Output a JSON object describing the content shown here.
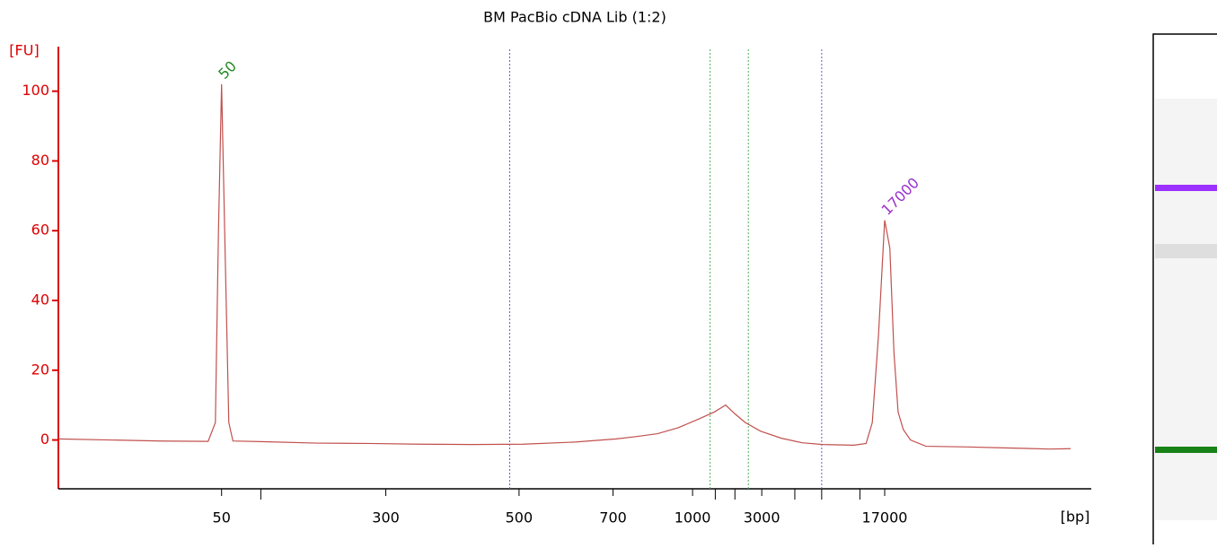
{
  "chart_data": {
    "type": "line",
    "title": "BM PacBio cDNA Lib (1:2)",
    "y_label": "[FU]",
    "x_label": "[bp]",
    "x": [
      0,
      5,
      10,
      14.5,
      15.2,
      15.5,
      15.8,
      16.1,
      16.5,
      16.9,
      20,
      25,
      30,
      35,
      40,
      45,
      50,
      54,
      56,
      58,
      60,
      62,
      63.5,
      64.6,
      65.5,
      66.5,
      68,
      70,
      72,
      74,
      77,
      78.2,
      78.8,
      79.4,
      80,
      80.5,
      80.9,
      81.3,
      81.8,
      82.5,
      84,
      88,
      92,
      96,
      98
    ],
    "series": [
      {
        "name": "sample",
        "color": "#c0504d",
        "values": [
          0.3,
          0,
          -0.3,
          -0.4,
          5,
          60,
          102,
          60,
          5,
          -0.3,
          -0.5,
          -0.9,
          -1,
          -1.2,
          -1.3,
          -1.2,
          -0.6,
          0.3,
          1,
          1.8,
          3.5,
          6,
          8,
          10,
          7.5,
          5,
          2.5,
          0.5,
          -0.8,
          -1.3,
          -1.5,
          -1,
          5,
          30,
          63,
          55,
          25,
          8,
          3,
          0,
          -1.8,
          -2,
          -2.3,
          -2.6,
          -2.5
        ]
      }
    ],
    "xlim": [
      0,
      100
    ],
    "ylim": [
      -14,
      112
    ],
    "yticks": [
      0,
      20,
      40,
      60,
      80,
      100
    ],
    "xticks": [
      {
        "value": 15.8,
        "label": "50"
      },
      {
        "value": 31.7,
        "label": "300"
      },
      {
        "value": 44.6,
        "label": "500"
      },
      {
        "value": 53.7,
        "label": "700"
      },
      {
        "value": 61.4,
        "label": "1000"
      },
      {
        "value": 68.1,
        "label": "3000"
      },
      {
        "value": 80.0,
        "label": "17000"
      }
    ],
    "xminor": [
      19.6,
      63.6,
      65.5,
      71.3,
      73.9,
      77.6
    ],
    "markers": [
      {
        "x": 43.7,
        "color": "#6a5acd"
      },
      {
        "x": 73.9,
        "color": "#6a5acd"
      },
      {
        "x": 63.1,
        "color": "#4caf50"
      },
      {
        "x": 66.8,
        "color": "#4caf50"
      }
    ],
    "peak_labels": [
      {
        "x": 15.8,
        "y": 102,
        "label": "50",
        "color": "#228b22"
      },
      {
        "x": 80.0,
        "y": 63,
        "label": "17000",
        "color": "#9932cc"
      }
    ]
  }
}
